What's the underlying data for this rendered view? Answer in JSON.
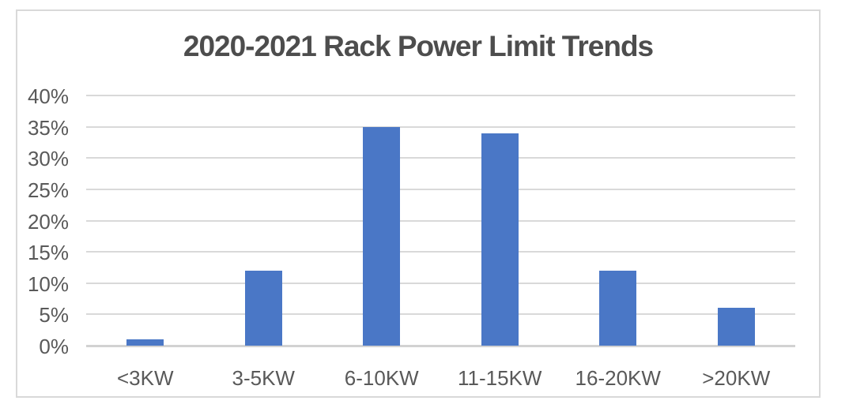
{
  "chart_data": {
    "type": "bar",
    "title": "2020-2021 Rack Power Limit Trends",
    "categories": [
      "<3KW",
      "3-5KW",
      "6-10KW",
      "11-15KW",
      "16-20KW",
      ">20KW"
    ],
    "values": [
      1,
      12,
      35,
      34,
      12,
      6
    ],
    "xlabel": "",
    "ylabel": "",
    "ylim": [
      0,
      40
    ],
    "ytick_step": 5,
    "ytick_labels": [
      "0%",
      "5%",
      "10%",
      "15%",
      "20%",
      "25%",
      "30%",
      "35%",
      "40%"
    ],
    "grid": true,
    "legend_position": "none",
    "colors": {
      "bar": "#4A77C6",
      "gridline": "#D9D9D9",
      "baseline": "#D2D2D2",
      "axis_text": "#595959",
      "title_text": "#4D4D4D",
      "frame_border": "#D9D9D9",
      "background": "#FFFFFF"
    }
  }
}
